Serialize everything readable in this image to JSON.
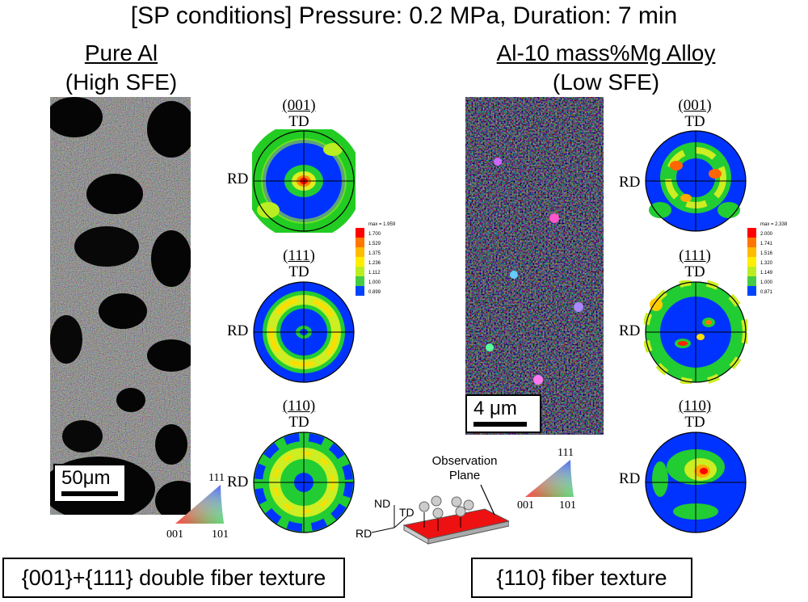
{
  "title": "[SP conditions] Pressure: 0.2 MPa, Duration: 7 min",
  "left": {
    "name": "Pure Al",
    "sfe": "(High SFE)",
    "scale_label": "50μm",
    "pole_figures": [
      {
        "plane": "(001)",
        "td": "TD",
        "rd": "RD"
      },
      {
        "plane": "(111)",
        "td": "TD",
        "rd": "RD"
      },
      {
        "plane": "(110)",
        "td": "TD",
        "rd": "RD"
      }
    ],
    "legend": {
      "max": "max = 1.959",
      "levels": [
        "1.700",
        "1.529",
        "1.375",
        "1.236",
        "1.112",
        "1.000",
        "0.899"
      ],
      "colors": [
        "#ff0000",
        "#ff7700",
        "#ffbb00",
        "#ffee00",
        "#bbee22",
        "#44cc44",
        "#0044ff"
      ]
    },
    "ipf": {
      "top": "111",
      "left": "001",
      "right": "101"
    },
    "summary": "{001}+{111} double fiber texture"
  },
  "right": {
    "name": "Al-10 mass%Mg Alloy",
    "sfe": "(Low SFE)",
    "scale_label": "4 μm",
    "pole_figures": [
      {
        "plane": "(001)",
        "td": "TD",
        "rd": "RD"
      },
      {
        "plane": "(111)",
        "td": "TD",
        "rd": "RD"
      },
      {
        "plane": "(110)",
        "td": "TD",
        "rd": "RD"
      }
    ],
    "legend": {
      "max": "max = 2.338",
      "levels": [
        "2.000",
        "1.741",
        "1.516",
        "1.320",
        "1.149",
        "1.000",
        "0.871"
      ],
      "colors": [
        "#ff0000",
        "#ff7700",
        "#ffbb00",
        "#ffee00",
        "#bbee22",
        "#44cc44",
        "#0044ff"
      ]
    },
    "ipf": {
      "top": "111",
      "left": "001",
      "right": "101"
    },
    "summary": "{110} fiber texture"
  },
  "schematic": {
    "observation": "Observation",
    "plane": "Plane",
    "nd": "ND",
    "td": "TD",
    "rd": "RD"
  }
}
